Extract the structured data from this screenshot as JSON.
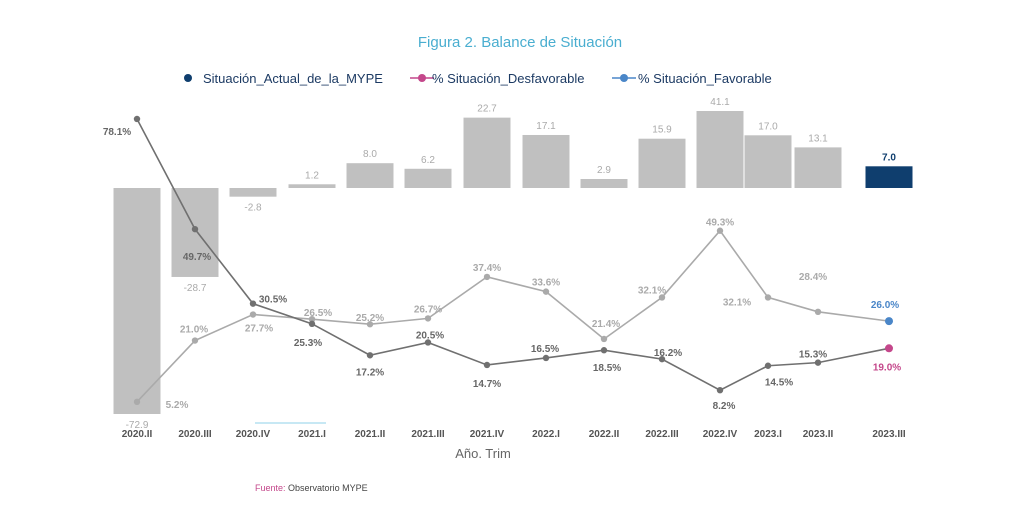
{
  "chart_data": {
    "type": "bar+line",
    "title": "Figura 2. Balance de Situación",
    "xlabel": "Año. Trim",
    "categories": [
      "2020.II",
      "2020.III",
      "2020.IV",
      "2021.I",
      "2021.II",
      "2021.III",
      "2021.IV",
      "2022.I",
      "2022.II",
      "2022.III",
      "2022.IV",
      "2023.I",
      "2023.II",
      "2023.III"
    ],
    "series": [
      {
        "name": "Situación_Actual_de_la_MYPE",
        "type": "bar",
        "values": [
          -72.9,
          -28.7,
          -2.8,
          1.2,
          8.0,
          6.2,
          22.7,
          17.1,
          2.9,
          15.9,
          41.1,
          17.0,
          13.1,
          7.0
        ],
        "labels": [
          "-72.9",
          "-28.7",
          "-2.8",
          "1.2",
          "8.0",
          "6.2",
          "22.7",
          "17.1",
          "2.9",
          "15.9",
          "41.1",
          "17.0",
          "13.1",
          "7.0"
        ],
        "color": "#c0c0c0",
        "highlight_color": "#0f3e6e"
      },
      {
        "name": "% Situación_Desfavorable",
        "type": "line",
        "values": [
          78.1,
          49.7,
          30.5,
          25.3,
          17.2,
          20.5,
          14.7,
          16.5,
          18.5,
          16.2,
          8.2,
          14.5,
          15.3,
          19.0
        ],
        "labels": [
          "78.1%",
          "49.7%",
          "30.5%",
          "25.3%",
          "17.2%",
          "20.5%",
          "14.7%",
          "16.5%",
          "18.5%",
          "16.2%",
          "8.2%",
          "14.5%",
          "15.3%",
          "19.0%"
        ],
        "color": "#707070",
        "highlight_color": "#c4478b"
      },
      {
        "name": "% Situación_Favorable",
        "type": "line",
        "values": [
          5.2,
          21.0,
          27.7,
          26.5,
          25.2,
          26.7,
          37.4,
          33.6,
          21.4,
          32.1,
          49.3,
          32.1,
          28.4,
          26.0
        ],
        "labels": [
          "5.2%",
          "21.0%",
          "27.7%",
          "26.5%",
          "25.2%",
          "26.7%",
          "37.4%",
          "33.6%",
          "21.4%",
          "32.1%",
          "49.3%",
          "32.1%",
          "28.4%",
          "26.0%"
        ],
        "color": "#aaaaaa",
        "highlight_color": "#4a86c8"
      }
    ],
    "legend": "top",
    "grid": false
  },
  "source": {
    "label": "Fuente:",
    "text": "Observatorio MYPE",
    "label_color": "#c4478b"
  }
}
